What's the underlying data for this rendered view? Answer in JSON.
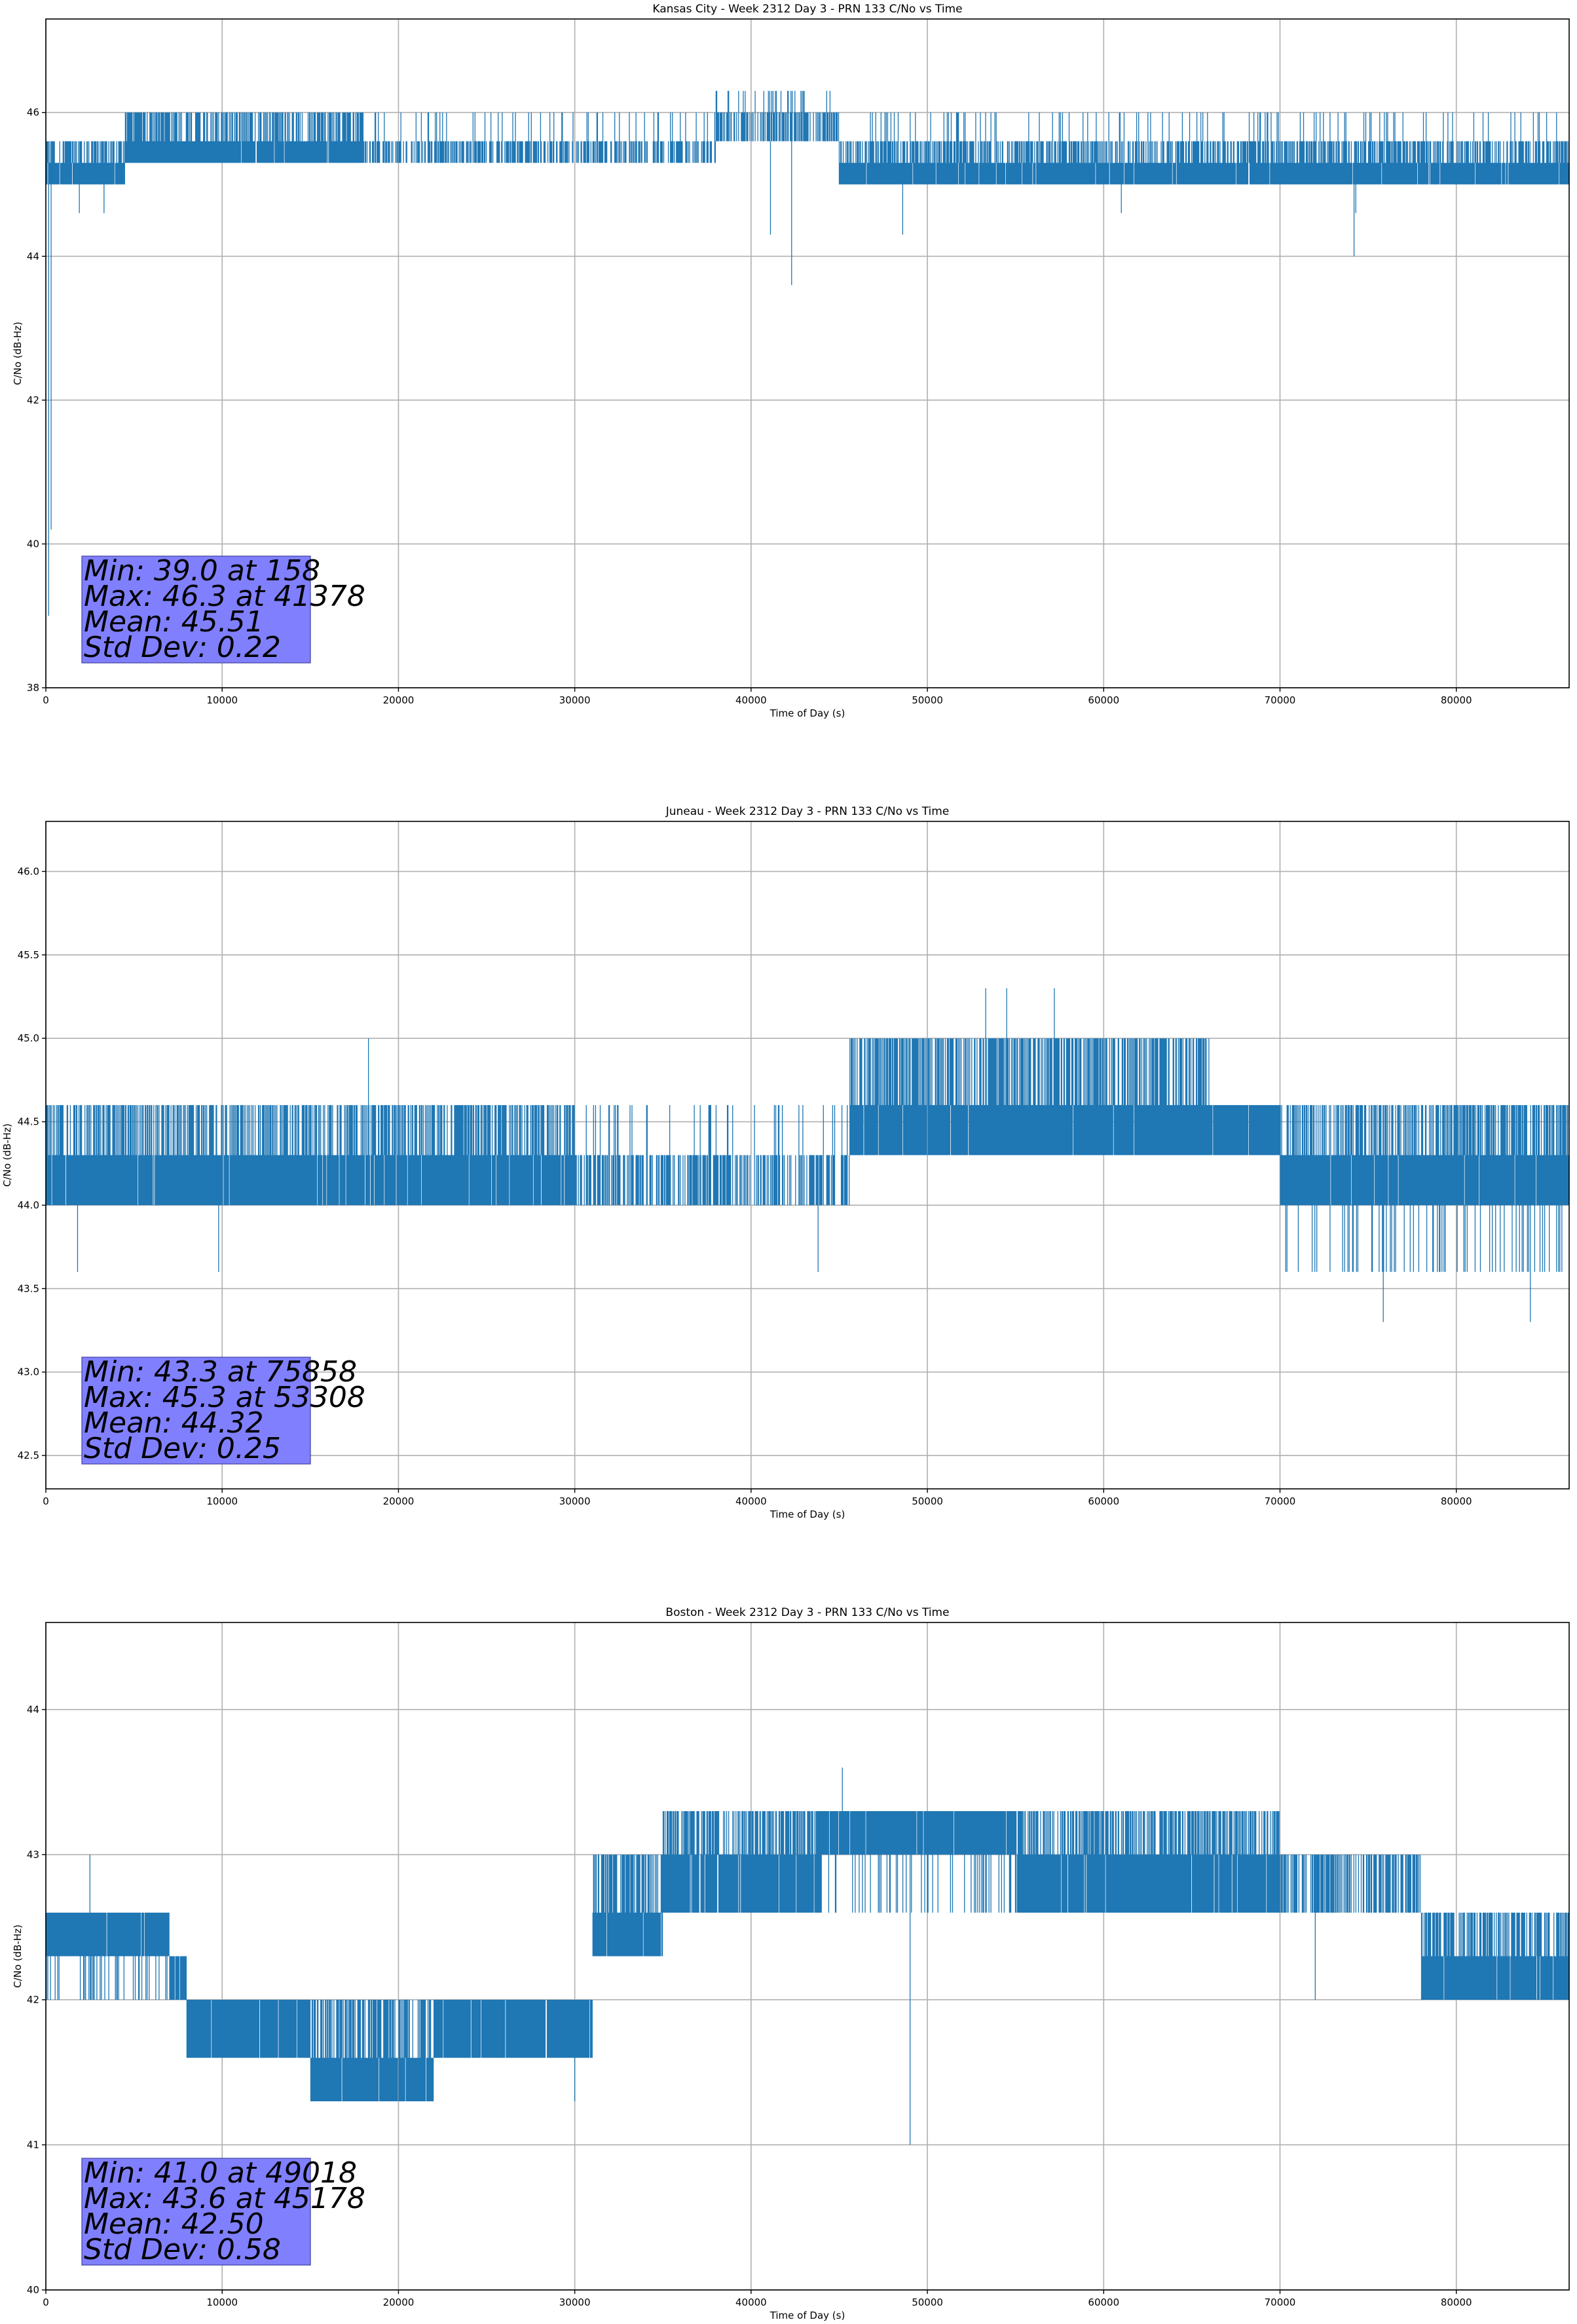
{
  "colors": {
    "series": "#1f77b4",
    "grid": "#b0b0b0",
    "axes": "#000000",
    "stats_box_fill": "#8080ff",
    "background": "#ffffff"
  },
  "chart_data": [
    {
      "type": "line",
      "title": "Kansas City - Week 2312 Day 3 - PRN 133 C/No vs Time",
      "xlabel": "Time of Day (s)",
      "ylabel": "C/No (dB-Hz)",
      "xlim": [
        0,
        86400
      ],
      "ylim": [
        38,
        47.3
      ],
      "xticks": [
        0,
        10000,
        20000,
        30000,
        40000,
        50000,
        60000,
        70000,
        80000
      ],
      "yticks": [
        38,
        40,
        42,
        44,
        46
      ],
      "ytick_labels": [
        "38",
        "40",
        "42",
        "44",
        "46"
      ],
      "grid": true,
      "legend": "none",
      "stats_box": {
        "placement": "bottom-left",
        "lines": [
          "Min: 39.0 at 158",
          "Max: 46.3 at 41378",
          "Mean: 45.51",
          "Std Dev: 0.22"
        ]
      },
      "series": [
        {
          "values_quantized_to": [
            39.0,
            44.3,
            44.6,
            45.0,
            45.3,
            45.6,
            46.0,
            46.3
          ],
          "segments": [
            {
              "x": [
                0,
                4500
              ],
              "levels": [
                45.0,
                45.3,
                45.6
              ],
              "base": 45.3
            },
            {
              "x": [
                4500,
                18000
              ],
              "levels": [
                45.3,
                45.6,
                46.0
              ],
              "base": 45.6
            },
            {
              "x": [
                18000,
                38000
              ],
              "levels": [
                45.3,
                45.6,
                46.0
              ],
              "base": 45.3
            },
            {
              "x": [
                38000,
                45000
              ],
              "levels": [
                45.6,
                46.0,
                46.3
              ],
              "base": 45.6
            },
            {
              "x": [
                45000,
                86400
              ],
              "levels": [
                45.0,
                45.3,
                45.6,
                46.0
              ],
              "base": 45.3
            }
          ],
          "spikes": [
            [
              158,
              39.0
            ],
            [
              300,
              40.2
            ],
            [
              41100,
              44.3
            ],
            [
              41378,
              46.3
            ],
            [
              42300,
              43.6
            ],
            [
              48600,
              44.3
            ],
            [
              61000,
              44.6
            ],
            [
              74200,
              44.0
            ],
            [
              74300,
              44.6
            ],
            [
              1900,
              44.6
            ],
            [
              3300,
              44.6
            ]
          ]
        }
      ]
    },
    {
      "type": "line",
      "title": "Juneau - Week 2312 Day 3 - PRN 133 C/No vs Time",
      "xlabel": "Time of Day (s)",
      "ylabel": "C/No (dB-Hz)",
      "xlim": [
        0,
        86400
      ],
      "ylim": [
        42.3,
        46.3
      ],
      "xticks": [
        0,
        10000,
        20000,
        30000,
        40000,
        50000,
        60000,
        70000,
        80000
      ],
      "yticks": [
        42.5,
        43.0,
        43.5,
        44.0,
        44.5,
        45.0,
        45.5,
        46.0
      ],
      "ytick_labels": [
        "42.5",
        "43.0",
        "43.5",
        "44.0",
        "44.5",
        "45.0",
        "45.5",
        "46.0"
      ],
      "grid": true,
      "legend": "none",
      "stats_box": {
        "placement": "bottom-left",
        "lines": [
          "Min: 43.3 at 75858",
          "Max: 45.3 at 53308",
          "Mean: 44.32",
          "Std Dev: 0.25"
        ]
      },
      "series": [
        {
          "values_quantized_to": [
            43.3,
            43.6,
            44.0,
            44.3,
            44.6,
            45.0,
            45.3
          ],
          "segments": [
            {
              "x": [
                0,
                10000
              ],
              "levels": [
                44.0,
                44.3,
                44.6
              ],
              "base": 44.3
            },
            {
              "x": [
                10000,
                30000
              ],
              "levels": [
                44.0,
                44.3,
                44.6
              ],
              "base": 44.3
            },
            {
              "x": [
                30000,
                45600
              ],
              "levels": [
                44.0,
                44.3,
                44.6
              ],
              "base": 44.0
            },
            {
              "x": [
                45600,
                54000
              ],
              "levels": [
                44.3,
                44.6,
                45.0
              ],
              "base": 44.6
            },
            {
              "x": [
                54000,
                66000
              ],
              "levels": [
                44.3,
                44.6,
                45.0
              ],
              "base": 44.6
            },
            {
              "x": [
                66000,
                70000
              ],
              "levels": [
                44.3,
                44.6
              ],
              "base": 44.6
            },
            {
              "x": [
                70000,
                86400
              ],
              "levels": [
                43.6,
                44.0,
                44.3,
                44.6
              ],
              "base": 44.3
            }
          ],
          "spikes": [
            [
              1800,
              43.6
            ],
            [
              9800,
              43.6
            ],
            [
              18300,
              45.0
            ],
            [
              43800,
              43.6
            ],
            [
              53308,
              45.3
            ],
            [
              54500,
              45.3
            ],
            [
              57200,
              45.3
            ],
            [
              75858,
              43.3
            ],
            [
              84200,
              43.3
            ]
          ]
        }
      ]
    },
    {
      "type": "line",
      "title": "Boston - Week 2312 Day 3 - PRN 133 C/No vs Time",
      "xlabel": "Time of Day (s)",
      "ylabel": "C/No (dB-Hz)",
      "xlim": [
        0,
        86400
      ],
      "ylim": [
        40,
        44.6
      ],
      "xticks": [
        0,
        10000,
        20000,
        30000,
        40000,
        50000,
        60000,
        70000,
        80000
      ],
      "yticks": [
        40,
        41,
        42,
        43,
        44
      ],
      "ytick_labels": [
        "40",
        "41",
        "42",
        "43",
        "44"
      ],
      "grid": true,
      "legend": "none",
      "stats_box": {
        "placement": "bottom-left",
        "lines": [
          "Min: 41.0 at 49018",
          "Max: 43.6 at 45178",
          "Mean: 42.50",
          "Std Dev: 0.58"
        ]
      },
      "series": [
        {
          "values_quantized_to": [
            41.0,
            41.3,
            41.6,
            42.0,
            42.3,
            42.6,
            43.0,
            43.3,
            43.6
          ],
          "segments": [
            {
              "x": [
                0,
                7000
              ],
              "levels": [
                42.0,
                42.3,
                42.6
              ],
              "base": 42.6
            },
            {
              "x": [
                7000,
                8000
              ],
              "levels": [
                42.0,
                42.3
              ],
              "base": 42.3
            },
            {
              "x": [
                8000,
                15000
              ],
              "levels": [
                41.6,
                42.0
              ],
              "base": 42.0
            },
            {
              "x": [
                15000,
                22000
              ],
              "levels": [
                41.3,
                41.6,
                42.0
              ],
              "base": 41.6
            },
            {
              "x": [
                22000,
                31000
              ],
              "levels": [
                41.6,
                42.0
              ],
              "base": 42.0
            },
            {
              "x": [
                31000,
                35000
              ],
              "levels": [
                42.3,
                42.6,
                43.0
              ],
              "base": 42.6
            },
            {
              "x": [
                35000,
                44000
              ],
              "levels": [
                42.6,
                43.0,
                43.3
              ],
              "base": 43.0
            },
            {
              "x": [
                44000,
                55000
              ],
              "levels": [
                42.6,
                43.0,
                43.3
              ],
              "base": 43.3
            },
            {
              "x": [
                55000,
                70000
              ],
              "levels": [
                42.6,
                43.0,
                43.3
              ],
              "base": 43.0
            },
            {
              "x": [
                70000,
                78000
              ],
              "levels": [
                42.6,
                43.0
              ],
              "base": 42.6
            },
            {
              "x": [
                78000,
                86400
              ],
              "levels": [
                42.0,
                42.3,
                42.6
              ],
              "base": 42.3
            }
          ],
          "spikes": [
            [
              2500,
              43.0
            ],
            [
              30000,
              41.3
            ],
            [
              45178,
              43.6
            ],
            [
              49018,
              41.0
            ],
            [
              72000,
              42.0
            ]
          ]
        }
      ]
    }
  ]
}
